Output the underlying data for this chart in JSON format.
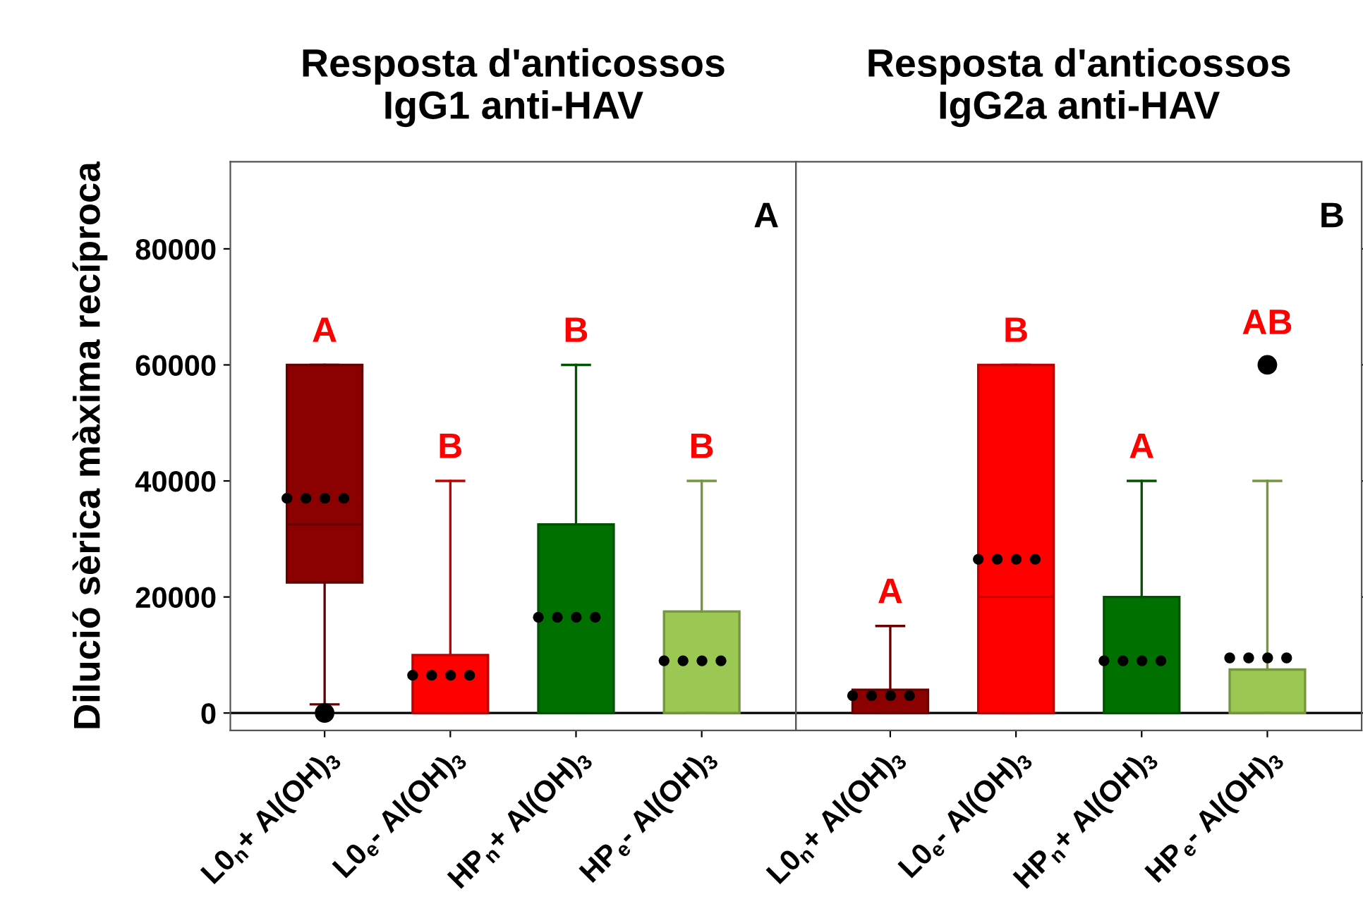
{
  "chart_data": [
    {
      "type": "box",
      "title": "Resposta d'anticossos\nIgG1 anti-HAV",
      "ylabel": "Dilució sèrica màxima recíproca",
      "categories": [
        "L0$_{n}$+ Al(OH)$_{3}$",
        "L0$_{e}$- Al(OH)$_{3}$",
        "HP$_{n}$+ Al(OH)$_{3}$",
        "HP$_{e}$- Al(OH)$_{3}$"
      ],
      "colors": [
        "#8b0000",
        "#ff0000",
        "#007000",
        "#9bc853"
      ],
      "boxes": [
        {
          "low": 1500,
          "q1": 22500,
          "median": 32500,
          "q3": 60000,
          "high": 60000,
          "mean": 37000,
          "outliers": [
            0
          ]
        },
        {
          "low": 0,
          "q1": 0,
          "median": 0,
          "q3": 10000,
          "high": 40000,
          "mean": 6500
        },
        {
          "low": 0,
          "q1": 0,
          "median": 0,
          "q3": 32500,
          "high": 60000,
          "mean": 16500
        },
        {
          "low": 0,
          "q1": 0,
          "median": 0,
          "q3": 17500,
          "high": 40000,
          "mean": 9000
        }
      ],
      "ylim": [
        -3000,
        95000
      ],
      "yticks": [
        0,
        20000,
        40000,
        60000,
        80000
      ],
      "ref_lines": [
        {
          "axis": "y",
          "value": 0,
          "color": "#000000"
        }
      ],
      "annotations": [
        "A",
        {
          "text": "A",
          "x": "L0$_{n}$+ Al(OH)$_{3}$",
          "y": 60000
        },
        {
          "text": "B",
          "x": "L0$_{e}$- Al(OH)$_{3}$",
          "y": 40000
        },
        {
          "text": "B",
          "x": "HP$_{n}$+ Al(OH)$_{3}$",
          "y": 60000
        },
        {
          "text": "B",
          "x": "HP$_{e}$- Al(OH)$_{3}$",
          "y": 40000
        }
      ]
    },
    {
      "type": "box",
      "title": "Resposta d'anticossos\nIgG2a anti-HAV",
      "categories": [
        "L0$_{n}$+ Al(OH)$_{3}$",
        "L0$_{e}$- Al(OH)$_{3}$",
        "HP$_{n}$+ Al(OH)$_{3}$",
        "HP$_{e}$- Al(OH)$_{3}$"
      ],
      "colors": [
        "#8b0000",
        "#ff0000",
        "#007000",
        "#9bc853"
      ],
      "boxes": [
        {
          "low": 0,
          "q1": 0,
          "median": 0,
          "q3": 4000,
          "high": 15000,
          "mean": 3000
        },
        {
          "low": 0,
          "q1": 0,
          "median": 20000,
          "q3": 60000,
          "high": 60000,
          "mean": 26500
        },
        {
          "low": 0,
          "q1": 0,
          "median": 0,
          "q3": 20000,
          "high": 40000,
          "mean": 9000
        },
        {
          "low": 0,
          "q1": 0,
          "median": 0,
          "q3": 7500,
          "high": 40000,
          "mean": 9500,
          "outliers": [
            60000
          ]
        }
      ],
      "ylim": [
        -3000,
        95000
      ],
      "yticks": [
        0,
        20000,
        40000,
        60000,
        80000
      ],
      "tick_labels": "x",
      "ref_lines": [
        {
          "axis": "y",
          "value": 0,
          "color": "#000000"
        }
      ],
      "annotations": [
        "B",
        {
          "text": "A",
          "x": "L0$_{n}$+ Al(OH)$_{3}$",
          "y": 15000
        },
        {
          "text": "B",
          "x": "L0$_{e}$- Al(OH)$_{3}$",
          "y": 60000
        },
        {
          "text": "A",
          "x": "HP$_{n}$+ Al(OH)$_{3}$",
          "y": 40000
        },
        "AB"
      ]
    }
  ]
}
